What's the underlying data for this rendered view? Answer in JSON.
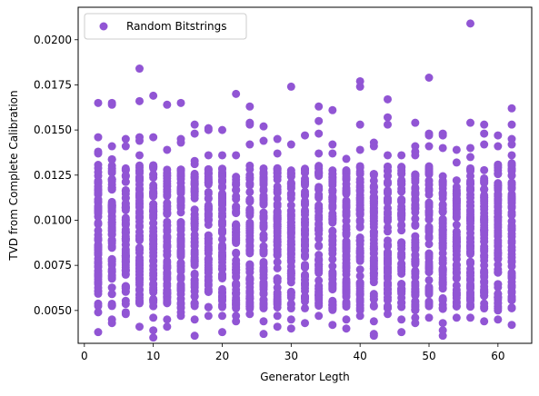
{
  "chart_data": {
    "type": "scatter",
    "title": "",
    "xlabel": "Generator Legth",
    "ylabel": "TVD from Complete Calibration",
    "xlim": [
      -0.9,
      64.9
    ],
    "ylim": [
      0.00318,
      0.0218
    ],
    "xticks": [
      0,
      10,
      20,
      30,
      40,
      50,
      60
    ],
    "xtick_labels": [
      "0",
      "10",
      "20",
      "30",
      "40",
      "50",
      "60"
    ],
    "yticks": [
      0.005,
      0.0075,
      0.01,
      0.0125,
      0.015,
      0.0175,
      0.02
    ],
    "ytick_labels": [
      "0.0050",
      "0.0075",
      "0.0100",
      "0.0125",
      "0.0150",
      "0.0175",
      "0.0200"
    ],
    "grid": false,
    "legend_position": "upper left",
    "series": [
      {
        "name": "Random Bitstrings",
        "color": "#9155d4",
        "marker": "circle",
        "x_values": [
          2,
          4,
          6,
          8,
          10,
          12,
          14,
          16,
          18,
          20,
          22,
          24,
          26,
          28,
          30,
          32,
          34,
          36,
          38,
          40,
          42,
          44,
          46,
          48,
          50,
          52,
          54,
          56,
          58,
          60,
          62
        ],
        "band_low": [
          0.0052,
          0.0052,
          0.0053,
          0.0052,
          0.0052,
          0.0053,
          0.0051,
          0.0052,
          0.0051,
          0.0051,
          0.0051,
          0.0051,
          0.005,
          0.0051,
          0.0051,
          0.0051,
          0.0052,
          0.005,
          0.0051,
          0.005,
          0.0051,
          0.0051,
          0.0051,
          0.005,
          0.0051,
          0.005,
          0.0051,
          0.005,
          0.0051,
          0.005,
          0.0051
        ],
        "band_high": [
          0.0131,
          0.0134,
          0.013,
          0.0131,
          0.0131,
          0.0131,
          0.0131,
          0.0133,
          0.0129,
          0.0131,
          0.0129,
          0.0132,
          0.0129,
          0.0131,
          0.0132,
          0.0131,
          0.0133,
          0.013,
          0.0128,
          0.013,
          0.0126,
          0.0131,
          0.013,
          0.0128,
          0.0131,
          0.0126,
          0.0124,
          0.0129,
          0.0131,
          0.0131,
          0.0132
        ],
        "points": [
          [
            2,
            0.0038
          ],
          [
            2,
            0.0146
          ],
          [
            2,
            0.0165
          ],
          [
            2,
            0.0138
          ],
          [
            2,
            0.0137
          ],
          [
            2,
            0.0049
          ],
          [
            4,
            0.0165
          ],
          [
            4,
            0.0164
          ],
          [
            4,
            0.0141
          ],
          [
            4,
            0.0045
          ],
          [
            4,
            0.0043
          ],
          [
            6,
            0.0145
          ],
          [
            6,
            0.0141
          ],
          [
            6,
            0.0048
          ],
          [
            6,
            0.0049
          ],
          [
            8,
            0.0184
          ],
          [
            8,
            0.0166
          ],
          [
            8,
            0.0146
          ],
          [
            8,
            0.0144
          ],
          [
            8,
            0.0041
          ],
          [
            8,
            0.0136
          ],
          [
            10,
            0.0169
          ],
          [
            10,
            0.0146
          ],
          [
            10,
            0.0035
          ],
          [
            10,
            0.0046
          ],
          [
            10,
            0.0039
          ],
          [
            12,
            0.0164
          ],
          [
            12,
            0.0139
          ],
          [
            12,
            0.0045
          ],
          [
            12,
            0.0041
          ],
          [
            14,
            0.0165
          ],
          [
            14,
            0.0145
          ],
          [
            14,
            0.0143
          ],
          [
            14,
            0.0049
          ],
          [
            14,
            0.0047
          ],
          [
            16,
            0.0153
          ],
          [
            16,
            0.0148
          ],
          [
            16,
            0.0036
          ],
          [
            16,
            0.0045
          ],
          [
            18,
            0.0151
          ],
          [
            18,
            0.015
          ],
          [
            18,
            0.0136
          ],
          [
            18,
            0.0047
          ],
          [
            20,
            0.015
          ],
          [
            20,
            0.0136
          ],
          [
            20,
            0.0038
          ],
          [
            20,
            0.0047
          ],
          [
            22,
            0.017
          ],
          [
            22,
            0.0136
          ],
          [
            22,
            0.0044
          ],
          [
            22,
            0.0047
          ],
          [
            24,
            0.0163
          ],
          [
            24,
            0.0154
          ],
          [
            24,
            0.0153
          ],
          [
            24,
            0.0142
          ],
          [
            24,
            0.0048
          ],
          [
            26,
            0.0152
          ],
          [
            26,
            0.0144
          ],
          [
            26,
            0.0037
          ],
          [
            26,
            0.0044
          ],
          [
            28,
            0.0145
          ],
          [
            28,
            0.0137
          ],
          [
            28,
            0.0047
          ],
          [
            28,
            0.0041
          ],
          [
            30,
            0.0174
          ],
          [
            30,
            0.0142
          ],
          [
            30,
            0.0045
          ],
          [
            30,
            0.004
          ],
          [
            32,
            0.0147
          ],
          [
            32,
            0.0043
          ],
          [
            34,
            0.0163
          ],
          [
            34,
            0.0155
          ],
          [
            34,
            0.0148
          ],
          [
            34,
            0.0137
          ],
          [
            34,
            0.0047
          ],
          [
            36,
            0.0161
          ],
          [
            36,
            0.0142
          ],
          [
            36,
            0.0137
          ],
          [
            36,
            0.0042
          ],
          [
            38,
            0.0134
          ],
          [
            38,
            0.0045
          ],
          [
            38,
            0.004
          ],
          [
            40,
            0.0177
          ],
          [
            40,
            0.0174
          ],
          [
            40,
            0.0153
          ],
          [
            40,
            0.0139
          ],
          [
            40,
            0.0047
          ],
          [
            42,
            0.0143
          ],
          [
            42,
            0.0141
          ],
          [
            42,
            0.0037
          ],
          [
            42,
            0.0036
          ],
          [
            42,
            0.0044
          ],
          [
            42,
            0.0118
          ],
          [
            44,
            0.0167
          ],
          [
            44,
            0.0157
          ],
          [
            44,
            0.0153
          ],
          [
            44,
            0.0136
          ],
          [
            44,
            0.0048
          ],
          [
            46,
            0.0136
          ],
          [
            46,
            0.0038
          ],
          [
            46,
            0.0045
          ],
          [
            48,
            0.0154
          ],
          [
            48,
            0.0141
          ],
          [
            48,
            0.0138
          ],
          [
            48,
            0.0136
          ],
          [
            48,
            0.0046
          ],
          [
            48,
            0.0043
          ],
          [
            50,
            0.0179
          ],
          [
            50,
            0.0148
          ],
          [
            50,
            0.0147
          ],
          [
            50,
            0.0141
          ],
          [
            50,
            0.0046
          ],
          [
            52,
            0.0148
          ],
          [
            52,
            0.0147
          ],
          [
            52,
            0.014
          ],
          [
            52,
            0.0036
          ],
          [
            52,
            0.0039
          ],
          [
            52,
            0.0043
          ],
          [
            54,
            0.0139
          ],
          [
            54,
            0.0132
          ],
          [
            54,
            0.0046
          ],
          [
            56,
            0.0209
          ],
          [
            56,
            0.0154
          ],
          [
            56,
            0.014
          ],
          [
            56,
            0.0135
          ],
          [
            56,
            0.0046
          ],
          [
            58,
            0.0153
          ],
          [
            58,
            0.0148
          ],
          [
            58,
            0.0142
          ],
          [
            58,
            0.0044
          ],
          [
            60,
            0.0147
          ],
          [
            60,
            0.0141
          ],
          [
            60,
            0.0045
          ],
          [
            62,
            0.0162
          ],
          [
            62,
            0.0153
          ],
          [
            62,
            0.0145
          ],
          [
            62,
            0.0142
          ],
          [
            62,
            0.0136
          ],
          [
            62,
            0.0042
          ]
        ]
      }
    ]
  }
}
